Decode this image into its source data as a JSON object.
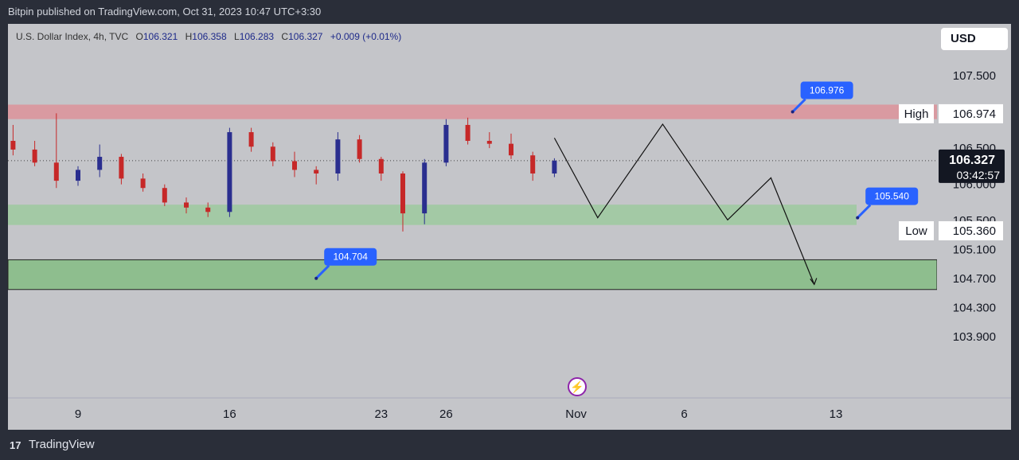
{
  "header": {
    "published_text": "Bitpin published on TradingView.com, Oct 31, 2023 10:47 UTC+3:30"
  },
  "legend": {
    "symbol": "U.S. Dollar Index, 4h, TVC",
    "o_label": "O",
    "o_value": "106.321",
    "h_label": "H",
    "h_value": "106.358",
    "l_label": "L",
    "l_value": "106.283",
    "c_label": "C",
    "c_value": "106.327",
    "change": "+0.009 (+0.01%)"
  },
  "price_scale": {
    "currency": "USD"
  },
  "footer": {
    "brand": "TradingView",
    "logo_mark": "17"
  },
  "colors": {
    "up": "#2a2e8f",
    "down": "#c62828",
    "resistance_zone": "#d99aa1",
    "support_zone": "#a3c9a5",
    "target_zone": "#8ebe8e",
    "callout": "#2962ff"
  },
  "chart_data": {
    "type": "candlestick",
    "y_ticks": [
      "107.500",
      "106.500",
      "106.000",
      "105.500",
      "105.100",
      "104.700",
      "104.300",
      "103.900"
    ],
    "y_tick_values": [
      107.5,
      106.5,
      106.0,
      105.5,
      105.1,
      104.7,
      104.3,
      103.9
    ],
    "x_ticks": [
      "9",
      "16",
      "23",
      "26",
      "Nov",
      "6",
      "13"
    ],
    "x_tick_dates": [
      "2023-10-09",
      "2023-10-16",
      "2023-10-23",
      "2023-10-26",
      "2023-11-01",
      "2023-11-06",
      "2023-11-13"
    ],
    "last_price": "106.327",
    "countdown": "03:42:57",
    "zones": [
      {
        "name": "resistance",
        "low": 106.9,
        "high": 107.1
      },
      {
        "name": "support",
        "low": 105.44,
        "high": 105.72
      },
      {
        "name": "target",
        "low": 104.55,
        "high": 104.96
      }
    ],
    "level_labels": [
      {
        "label": "High",
        "value": "106.974"
      },
      {
        "label": "Low",
        "value": "105.360"
      }
    ],
    "callouts": [
      {
        "text": "106.976",
        "date": "2023-11-11",
        "price": 107.0
      },
      {
        "text": "105.540",
        "date": "2023-11-14",
        "price": 105.54
      },
      {
        "text": "104.704",
        "date": "2023-10-20",
        "price": 104.704
      }
    ],
    "projection": [
      {
        "date": "2023-10-31",
        "price": 106.64
      },
      {
        "date": "2023-11-02",
        "price": 105.54
      },
      {
        "date": "2023-11-05",
        "price": 106.83
      },
      {
        "date": "2023-11-08",
        "price": 105.51
      },
      {
        "date": "2023-11-10",
        "price": 106.09
      },
      {
        "date": "2023-11-12",
        "price": 104.62
      }
    ],
    "candles": [
      {
        "date": "2023-10-05",
        "open": 106.72,
        "high": 106.8,
        "close": 106.58,
        "low": 106.55
      },
      {
        "date": "2023-10-06",
        "open": 106.6,
        "high": 106.82,
        "close": 106.48,
        "low": 106.4
      },
      {
        "date": "2023-10-07",
        "open": 106.48,
        "high": 106.6,
        "close": 106.3,
        "low": 106.25
      },
      {
        "date": "2023-10-08",
        "open": 106.3,
        "high": 106.98,
        "close": 106.05,
        "low": 105.95
      },
      {
        "date": "2023-10-09",
        "open": 106.05,
        "high": 106.25,
        "close": 106.2,
        "low": 105.98
      },
      {
        "date": "2023-10-10",
        "open": 106.2,
        "high": 106.55,
        "close": 106.38,
        "low": 106.1
      },
      {
        "date": "2023-10-11",
        "open": 106.38,
        "high": 106.42,
        "close": 106.08,
        "low": 106.0
      },
      {
        "date": "2023-10-12",
        "open": 106.08,
        "high": 106.15,
        "close": 105.95,
        "low": 105.9
      },
      {
        "date": "2023-10-13",
        "open": 105.95,
        "high": 106.0,
        "close": 105.75,
        "low": 105.7
      },
      {
        "date": "2023-10-14",
        "open": 105.75,
        "high": 105.82,
        "close": 105.68,
        "low": 105.6
      },
      {
        "date": "2023-10-15",
        "open": 105.68,
        "high": 105.75,
        "close": 105.62,
        "low": 105.55
      },
      {
        "date": "2023-10-16",
        "open": 105.62,
        "high": 106.78,
        "close": 106.72,
        "low": 105.55
      },
      {
        "date": "2023-10-17",
        "open": 106.72,
        "high": 106.78,
        "close": 106.52,
        "low": 106.45
      },
      {
        "date": "2023-10-18",
        "open": 106.52,
        "high": 106.58,
        "close": 106.32,
        "low": 106.25
      },
      {
        "date": "2023-10-19",
        "open": 106.32,
        "high": 106.45,
        "close": 106.2,
        "low": 106.1
      },
      {
        "date": "2023-10-20",
        "open": 106.2,
        "high": 106.25,
        "close": 106.15,
        "low": 106.0
      },
      {
        "date": "2023-10-21",
        "open": 106.15,
        "high": 106.72,
        "close": 106.62,
        "low": 106.05
      },
      {
        "date": "2023-10-22",
        "open": 106.62,
        "high": 106.68,
        "close": 106.35,
        "low": 106.3
      },
      {
        "date": "2023-10-23",
        "open": 106.35,
        "high": 106.38,
        "close": 106.15,
        "low": 106.05
      },
      {
        "date": "2023-10-24",
        "open": 106.15,
        "high": 106.18,
        "close": 105.6,
        "low": 105.35
      },
      {
        "date": "2023-10-25",
        "open": 105.6,
        "high": 106.35,
        "close": 106.3,
        "low": 105.45
      },
      {
        "date": "2023-10-26",
        "open": 106.3,
        "high": 106.9,
        "close": 106.82,
        "low": 106.25
      },
      {
        "date": "2023-10-27",
        "open": 106.82,
        "high": 106.92,
        "close": 106.6,
        "low": 106.55
      },
      {
        "date": "2023-10-28",
        "open": 106.6,
        "high": 106.72,
        "close": 106.56,
        "low": 106.5
      },
      {
        "date": "2023-10-29",
        "open": 106.56,
        "high": 106.7,
        "close": 106.4,
        "low": 106.35
      },
      {
        "date": "2023-10-30",
        "open": 106.4,
        "high": 106.45,
        "close": 106.15,
        "low": 106.05
      },
      {
        "date": "2023-10-31",
        "open": 106.15,
        "high": 106.36,
        "close": 106.327,
        "low": 106.1
      }
    ]
  }
}
